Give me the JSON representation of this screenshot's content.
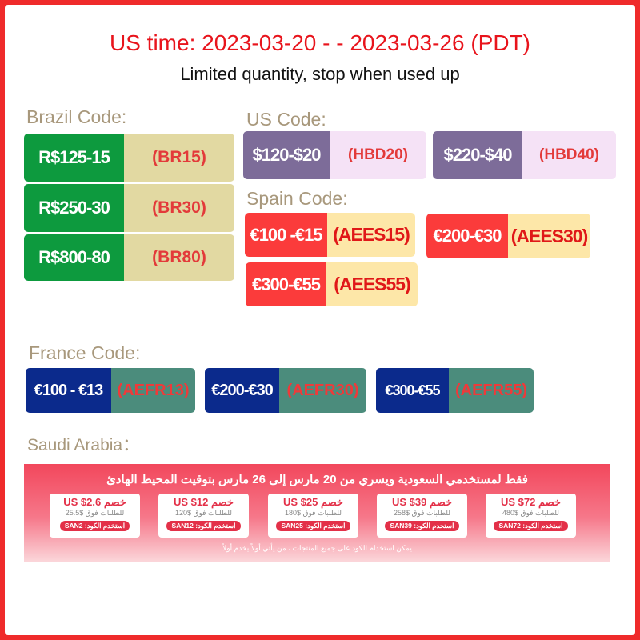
{
  "header": {
    "title": "US time: 2023-03-20  - - 2023-03-26 (PDT)",
    "subtitle": "Limited quantity, stop when used up"
  },
  "brazil": {
    "label": "Brazil Code:",
    "coupons": [
      {
        "amount": "R$125-15",
        "code": "(BR15)"
      },
      {
        "amount": "R$250-30",
        "code": "(BR30)"
      },
      {
        "amount": "R$800-80",
        "code": "(BR80)"
      }
    ]
  },
  "us": {
    "label": "US Code:",
    "coupons": [
      {
        "amount": "$120-$20",
        "code": "(HBD20)"
      },
      {
        "amount": "$220-$40",
        "code": "(HBD40)"
      }
    ]
  },
  "spain": {
    "label": "Spain Code:",
    "coupons": [
      {
        "amount": "€100 -€15",
        "code": "(AEES15)"
      },
      {
        "amount": "€200-€30",
        "code": "(AEES30)"
      },
      {
        "amount": "€300-€55",
        "code": "(AEES55)"
      }
    ]
  },
  "france": {
    "label": "France Code:",
    "coupons": [
      {
        "amount": "€100 - €13",
        "code": "(AEFR13)"
      },
      {
        "amount": "€200-€30",
        "code": "(AEFR30)"
      },
      {
        "amount": "€300-€55",
        "code": "(AEFR55)"
      }
    ]
  },
  "saudi": {
    "label": "Saudi Arabia：",
    "heading": "فقط لمستخدمي السعودية ويسري من 20 مارس إلى 26 مارس بتوقيت المحيط الهادئ",
    "footer": "يمكن استخدام الكود على جميع المنتجات ، من يأتي أولاً يخدم أولاً",
    "coupons": [
      {
        "discount": "خصم US $2.6",
        "min": "للطلبات فوق $25.5",
        "code": "استخدم الكود: SAN2"
      },
      {
        "discount": "خصم US $12",
        "min": "للطلبات فوق $120",
        "code": "استخدم الكود: SAN12"
      },
      {
        "discount": "خصم US $25",
        "min": "للطلبات فوق $180",
        "code": "استخدم الكود: SAN25"
      },
      {
        "discount": "خصم US $39",
        "min": "للطلبات فوق $258",
        "code": "استخدم الكود: SAN39"
      },
      {
        "discount": "خصم US $72",
        "min": "للطلبات فوق $480",
        "code": "استخدم الكود: SAN72"
      }
    ]
  },
  "colors": {
    "frame": "#ef2b2b",
    "title": "#e8141c",
    "brazil": "#0d9a3e",
    "us": "#7d6c99",
    "spain": "#fb3b3b",
    "france": "#0b2a8c"
  }
}
